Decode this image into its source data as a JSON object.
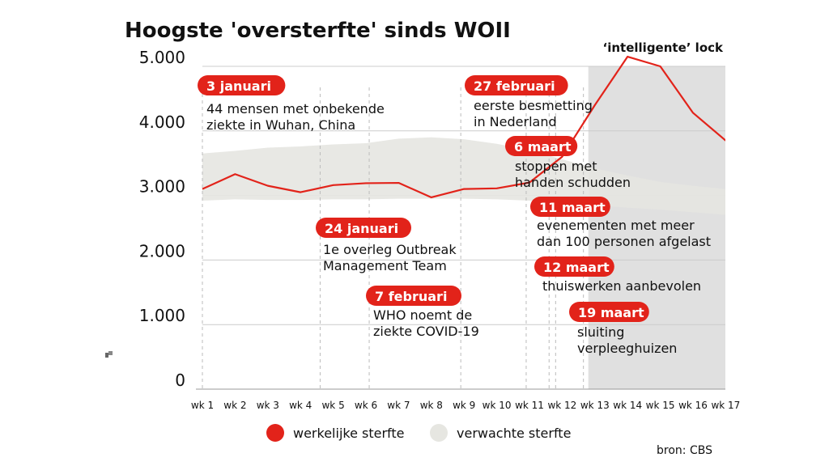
{
  "header": {
    "title": "Hoogste 'oversterfte' sinds WOII",
    "subtitle": "‘intelligente’ lock",
    "source": "bron: CBS"
  },
  "legend": {
    "actual_label": "werkelijke sterfte",
    "expected_label": "verwachte sterfte"
  },
  "colors": {
    "actual": "#e2231a",
    "expected_band": "#e6e6e1",
    "shade": "#e0e0e0",
    "label_bg": "#e2231a",
    "grid": "#cccccc"
  },
  "chart_data": {
    "type": "line",
    "title": "Hoogste 'oversterfte' sinds WOII",
    "x": [
      "wk 1",
      "wk 2",
      "wk 3",
      "wk 4",
      "wk 5",
      "wk 6",
      "wk 7",
      "wk 8",
      "wk 9",
      "wk 10",
      "wk 11",
      "wk 12",
      "wk 13",
      "wk 14",
      "wk 15",
      "wk 16",
      "wk 17"
    ],
    "yticks": [
      "0",
      "1.000",
      "2.000",
      "3.000",
      "4.000",
      "5.000"
    ],
    "ylim": [
      0,
      5000
    ],
    "grid": true,
    "legend_position": "bottom",
    "shaded_from_week": 12.8,
    "series": [
      {
        "name": "werkelijke sterfte",
        "values": [
          3100,
          3330,
          3150,
          3050,
          3160,
          3190,
          3195,
          2970,
          3100,
          3110,
          3200,
          3600,
          4400,
          5150,
          5000,
          4280,
          3850
        ]
      },
      {
        "name": "verwachte sterfte",
        "type": "band",
        "upper": [
          3650,
          3690,
          3740,
          3760,
          3790,
          3810,
          3880,
          3900,
          3870,
          3800,
          3700,
          3560,
          3420,
          3310,
          3210,
          3150,
          3100
        ],
        "lower": [
          2920,
          2940,
          2930,
          2930,
          2940,
          2940,
          2950,
          2950,
          2950,
          2940,
          2920,
          2890,
          2850,
          2810,
          2780,
          2740,
          2700
        ]
      }
    ],
    "annotations": [
      {
        "week": 1,
        "date": "3 januari",
        "text": [
          "44 mensen met onbekende",
          "ziekte in Wuhan, China"
        ]
      },
      {
        "week": 4.6,
        "date": "24 januari",
        "text": [
          "1e overleg Outbreak",
          "Management Team"
        ]
      },
      {
        "week": 6.1,
        "date": "7 februari",
        "text": [
          "WHO noemt de",
          "ziekte COVID-19"
        ]
      },
      {
        "week": 8.9,
        "date": "27 februari",
        "text": [
          "eerste besmetting",
          "in Nederland"
        ]
      },
      {
        "week": 10.9,
        "date": "6 maart",
        "text": [
          "stoppen met",
          "handen schudden"
        ]
      },
      {
        "week": 11.6,
        "date": "11 maart",
        "text": [
          "evenementen met meer",
          "dan 100 personen afgelast"
        ]
      },
      {
        "week": 11.8,
        "date": "12 maart",
        "text": [
          "thuiswerken aanbevolen"
        ]
      },
      {
        "week": 12.65,
        "date": "19 maart",
        "text": [
          "sluiting",
          "verpleeghuizen"
        ]
      }
    ]
  }
}
